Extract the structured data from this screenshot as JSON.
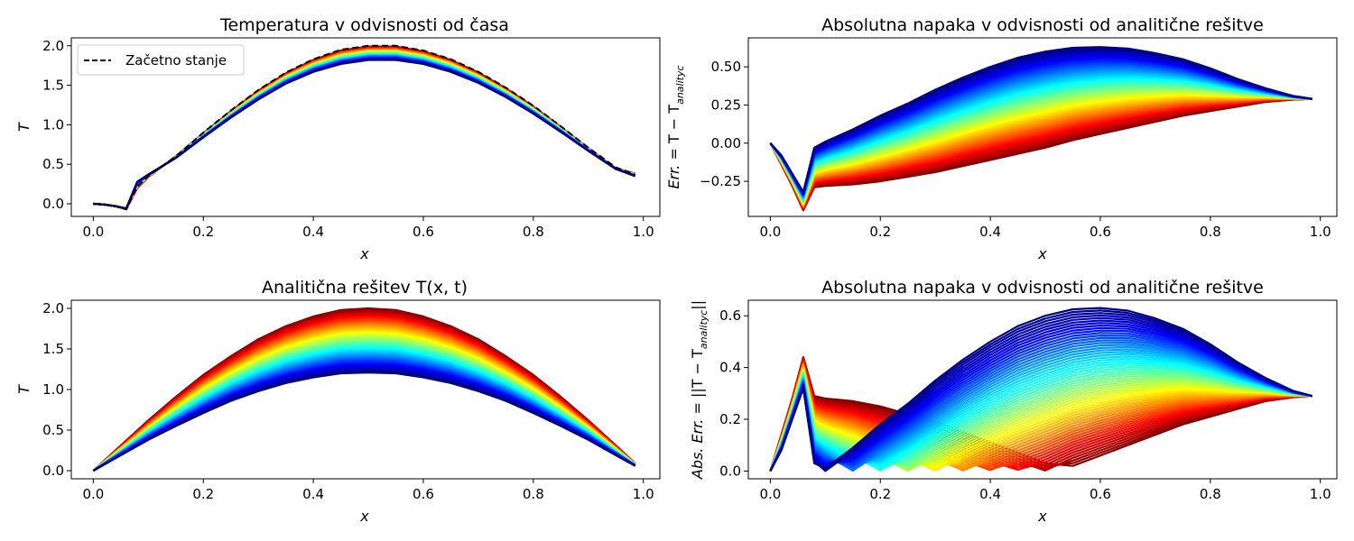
{
  "colors": {
    "colormap": "jet",
    "initial_line": "#000000",
    "axes": "#000000",
    "background": "#ffffff"
  },
  "chart_data": [
    {
      "type": "line",
      "title": "Temperatura v odvisnosti od časa",
      "xlabel": "x",
      "ylabel": "T",
      "xlim": [
        -0.04,
        1.03
      ],
      "ylim": [
        -0.16,
        2.1
      ],
      "xticks": [
        "0.0",
        "0.2",
        "0.4",
        "0.6",
        "0.8",
        "1.0"
      ],
      "yticks": [
        "0.0",
        "0.5",
        "1.0",
        "1.5",
        "2.0"
      ],
      "legend": {
        "position": "top-left",
        "entries": [
          "Začetno stanje"
        ]
      },
      "series_count": 60,
      "colormap": "jet",
      "x": [
        0.0,
        0.02,
        0.04,
        0.06,
        0.08,
        0.1,
        0.15,
        0.2,
        0.25,
        0.3,
        0.35,
        0.4,
        0.45,
        0.5,
        0.55,
        0.6,
        0.65,
        0.7,
        0.75,
        0.8,
        0.85,
        0.9,
        0.95,
        0.985
      ],
      "series": [
        {
          "name": "Začetno stanje",
          "style": "dashed",
          "values": [
            0.0,
            -0.01,
            -0.03,
            -0.07,
            0.22,
            0.35,
            0.6,
            0.9,
            1.18,
            1.44,
            1.66,
            1.83,
            1.95,
            2.0,
            2.0,
            1.94,
            1.83,
            1.67,
            1.47,
            1.24,
            0.98,
            0.71,
            0.46,
            0.37
          ]
        },
        {
          "name": "",
          "time": "first",
          "values": [
            0.0,
            -0.01,
            -0.03,
            -0.07,
            0.2,
            0.34,
            0.6,
            0.89,
            1.17,
            1.43,
            1.65,
            1.82,
            1.94,
            1.99,
            1.99,
            1.93,
            1.82,
            1.66,
            1.46,
            1.23,
            0.97,
            0.7,
            0.45,
            0.38
          ]
        },
        {
          "name": "",
          "time": "last",
          "values": [
            0.0,
            -0.01,
            -0.03,
            -0.06,
            0.28,
            0.37,
            0.58,
            0.84,
            1.09,
            1.32,
            1.52,
            1.67,
            1.77,
            1.82,
            1.82,
            1.77,
            1.67,
            1.53,
            1.35,
            1.14,
            0.91,
            0.67,
            0.44,
            0.35
          ]
        }
      ]
    },
    {
      "type": "line",
      "title": "Absolutna napaka v odvisnosti od analitične rešitve",
      "xlabel": "x",
      "ylabel": "Err. = T − T_analityc",
      "xlim": [
        -0.04,
        1.03
      ],
      "ylim": [
        -0.48,
        0.69
      ],
      "xticks": [
        "0.0",
        "0.2",
        "0.4",
        "0.6",
        "0.8",
        "1.0"
      ],
      "yticks": [
        "−0.25",
        "0.00",
        "0.25",
        "0.50"
      ],
      "series_count": 60,
      "colormap": "jet",
      "x": [
        0.0,
        0.02,
        0.04,
        0.06,
        0.08,
        0.1,
        0.15,
        0.2,
        0.25,
        0.3,
        0.35,
        0.4,
        0.45,
        0.5,
        0.55,
        0.6,
        0.65,
        0.7,
        0.75,
        0.8,
        0.85,
        0.9,
        0.95,
        0.985
      ],
      "series": [
        {
          "name": "",
          "time": "first",
          "values": [
            0.0,
            -0.14,
            -0.28,
            -0.44,
            -0.29,
            -0.28,
            -0.27,
            -0.25,
            -0.22,
            -0.19,
            -0.15,
            -0.11,
            -0.07,
            -0.03,
            0.02,
            0.06,
            0.1,
            0.14,
            0.18,
            0.21,
            0.24,
            0.27,
            0.285,
            0.29
          ]
        },
        {
          "name": "",
          "time": "last",
          "values": [
            0.0,
            -0.08,
            -0.2,
            -0.32,
            -0.03,
            0.01,
            0.09,
            0.18,
            0.26,
            0.35,
            0.43,
            0.5,
            0.56,
            0.6,
            0.625,
            0.63,
            0.62,
            0.59,
            0.55,
            0.49,
            0.42,
            0.36,
            0.31,
            0.29
          ]
        }
      ]
    },
    {
      "type": "line",
      "title": "Analitična rešitev T(x, t)",
      "xlabel": "x",
      "ylabel": "T",
      "xlim": [
        -0.04,
        1.03
      ],
      "ylim": [
        -0.1,
        2.1
      ],
      "xticks": [
        "0.0",
        "0.2",
        "0.4",
        "0.6",
        "0.8",
        "1.0"
      ],
      "yticks": [
        "0.0",
        "0.5",
        "1.0",
        "1.5",
        "2.0"
      ],
      "series_count": 60,
      "colormap": "jet",
      "x": [
        0.0,
        0.05,
        0.1,
        0.15,
        0.2,
        0.25,
        0.3,
        0.35,
        0.4,
        0.45,
        0.5,
        0.55,
        0.6,
        0.65,
        0.7,
        0.75,
        0.8,
        0.85,
        0.9,
        0.95,
        0.985
      ],
      "series": [
        {
          "name": "",
          "time": "first",
          "values": [
            0.0,
            0.31,
            0.62,
            0.91,
            1.18,
            1.41,
            1.62,
            1.78,
            1.9,
            1.98,
            2.0,
            1.98,
            1.9,
            1.78,
            1.62,
            1.41,
            1.18,
            0.91,
            0.62,
            0.31,
            0.09
          ]
        },
        {
          "name": "",
          "time": "last",
          "values": [
            0.0,
            0.19,
            0.38,
            0.55,
            0.71,
            0.86,
            0.98,
            1.08,
            1.15,
            1.2,
            1.21,
            1.2,
            1.15,
            1.08,
            0.98,
            0.86,
            0.71,
            0.55,
            0.38,
            0.19,
            0.06
          ]
        }
      ]
    },
    {
      "type": "line",
      "title": "Absolutna napaka v odvisnosti od analitične rešitve",
      "xlabel": "x",
      "ylabel": "Abs. Err. = ||T − T_analityc||",
      "xlim": [
        -0.04,
        1.03
      ],
      "ylim": [
        -0.03,
        0.66
      ],
      "xticks": [
        "0.0",
        "0.2",
        "0.4",
        "0.6",
        "0.8",
        "1.0"
      ],
      "yticks": [
        "0.0",
        "0.2",
        "0.4",
        "0.6"
      ],
      "series_count": 60,
      "colormap": "jet",
      "x": [
        0.0,
        0.02,
        0.04,
        0.06,
        0.08,
        0.1,
        0.15,
        0.2,
        0.25,
        0.3,
        0.35,
        0.4,
        0.45,
        0.5,
        0.55,
        0.6,
        0.65,
        0.7,
        0.75,
        0.8,
        0.85,
        0.9,
        0.95,
        0.985
      ],
      "series": [
        {
          "name": "",
          "time": "first",
          "values": [
            0.0,
            0.14,
            0.28,
            0.44,
            0.29,
            0.28,
            0.27,
            0.25,
            0.22,
            0.19,
            0.15,
            0.11,
            0.07,
            0.03,
            0.02,
            0.06,
            0.1,
            0.14,
            0.18,
            0.21,
            0.24,
            0.27,
            0.285,
            0.29
          ]
        },
        {
          "name": "",
          "time": "last",
          "values": [
            0.0,
            0.08,
            0.2,
            0.32,
            0.03,
            0.01,
            0.09,
            0.18,
            0.26,
            0.35,
            0.43,
            0.5,
            0.56,
            0.6,
            0.625,
            0.63,
            0.62,
            0.59,
            0.55,
            0.49,
            0.42,
            0.36,
            0.31,
            0.29
          ]
        }
      ]
    }
  ]
}
